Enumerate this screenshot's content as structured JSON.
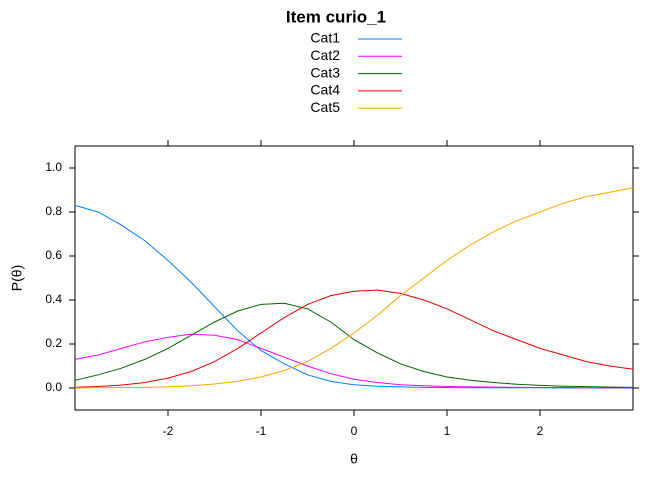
{
  "chart_data": {
    "type": "line",
    "title": "Item curio_1",
    "x_label": "θ",
    "y_label": "P(θ)",
    "x": [
      -3,
      -2.75,
      -2.5,
      -2.25,
      -2,
      -1.75,
      -1.5,
      -1.25,
      -1,
      -0.75,
      -0.5,
      -0.25,
      0,
      0.25,
      0.5,
      0.75,
      1,
      1.25,
      1.5,
      1.75,
      2,
      2.25,
      2.5,
      2.75,
      3
    ],
    "series": [
      {
        "name": "Cat1",
        "color": "#0080ff",
        "values": [
          0.83,
          0.8,
          0.74,
          0.67,
          0.58,
          0.48,
          0.37,
          0.26,
          0.17,
          0.11,
          0.06,
          0.03,
          0.015,
          0.008,
          0.005,
          0.003,
          0.002,
          0.001,
          0.001,
          0.001,
          0.001,
          0,
          0,
          0,
          0
        ]
      },
      {
        "name": "Cat2",
        "color": "#ff00ff",
        "values": [
          0.13,
          0.15,
          0.18,
          0.21,
          0.23,
          0.245,
          0.24,
          0.22,
          0.18,
          0.14,
          0.1,
          0.065,
          0.04,
          0.025,
          0.015,
          0.01,
          0.007,
          0.005,
          0.004,
          0.003,
          0.002,
          0.002,
          0.001,
          0.001,
          0.001
        ]
      },
      {
        "name": "Cat3",
        "color": "#006400",
        "values": [
          0.035,
          0.06,
          0.09,
          0.13,
          0.18,
          0.24,
          0.3,
          0.35,
          0.38,
          0.385,
          0.36,
          0.3,
          0.22,
          0.16,
          0.11,
          0.075,
          0.05,
          0.035,
          0.025,
          0.017,
          0.012,
          0.008,
          0.006,
          0.004,
          0.003
        ]
      },
      {
        "name": "Cat4",
        "color": "#e00000",
        "values": [
          0.003,
          0.007,
          0.013,
          0.025,
          0.045,
          0.075,
          0.12,
          0.18,
          0.25,
          0.32,
          0.38,
          0.42,
          0.44,
          0.445,
          0.43,
          0.4,
          0.36,
          0.31,
          0.26,
          0.22,
          0.18,
          0.15,
          0.12,
          0.1,
          0.085
        ]
      },
      {
        "name": "Cat5",
        "color": "#ffa500",
        "values": [
          0,
          0.001,
          0.002,
          0.003,
          0.005,
          0.01,
          0.018,
          0.03,
          0.05,
          0.08,
          0.12,
          0.18,
          0.25,
          0.33,
          0.42,
          0.5,
          0.58,
          0.65,
          0.71,
          0.76,
          0.8,
          0.84,
          0.87,
          0.89,
          0.91
        ]
      }
    ],
    "xlim": [
      -3,
      3
    ],
    "xticks": [
      -2,
      -1,
      0,
      1,
      2
    ],
    "ylim": [
      -0.1,
      1.1
    ],
    "yticks": [
      {
        "value": 0,
        "label": "0.0"
      },
      0.2,
      0.4,
      0.6,
      0.8,
      {
        "value": 1,
        "label": "1.0"
      }
    ],
    "legend": "top"
  }
}
